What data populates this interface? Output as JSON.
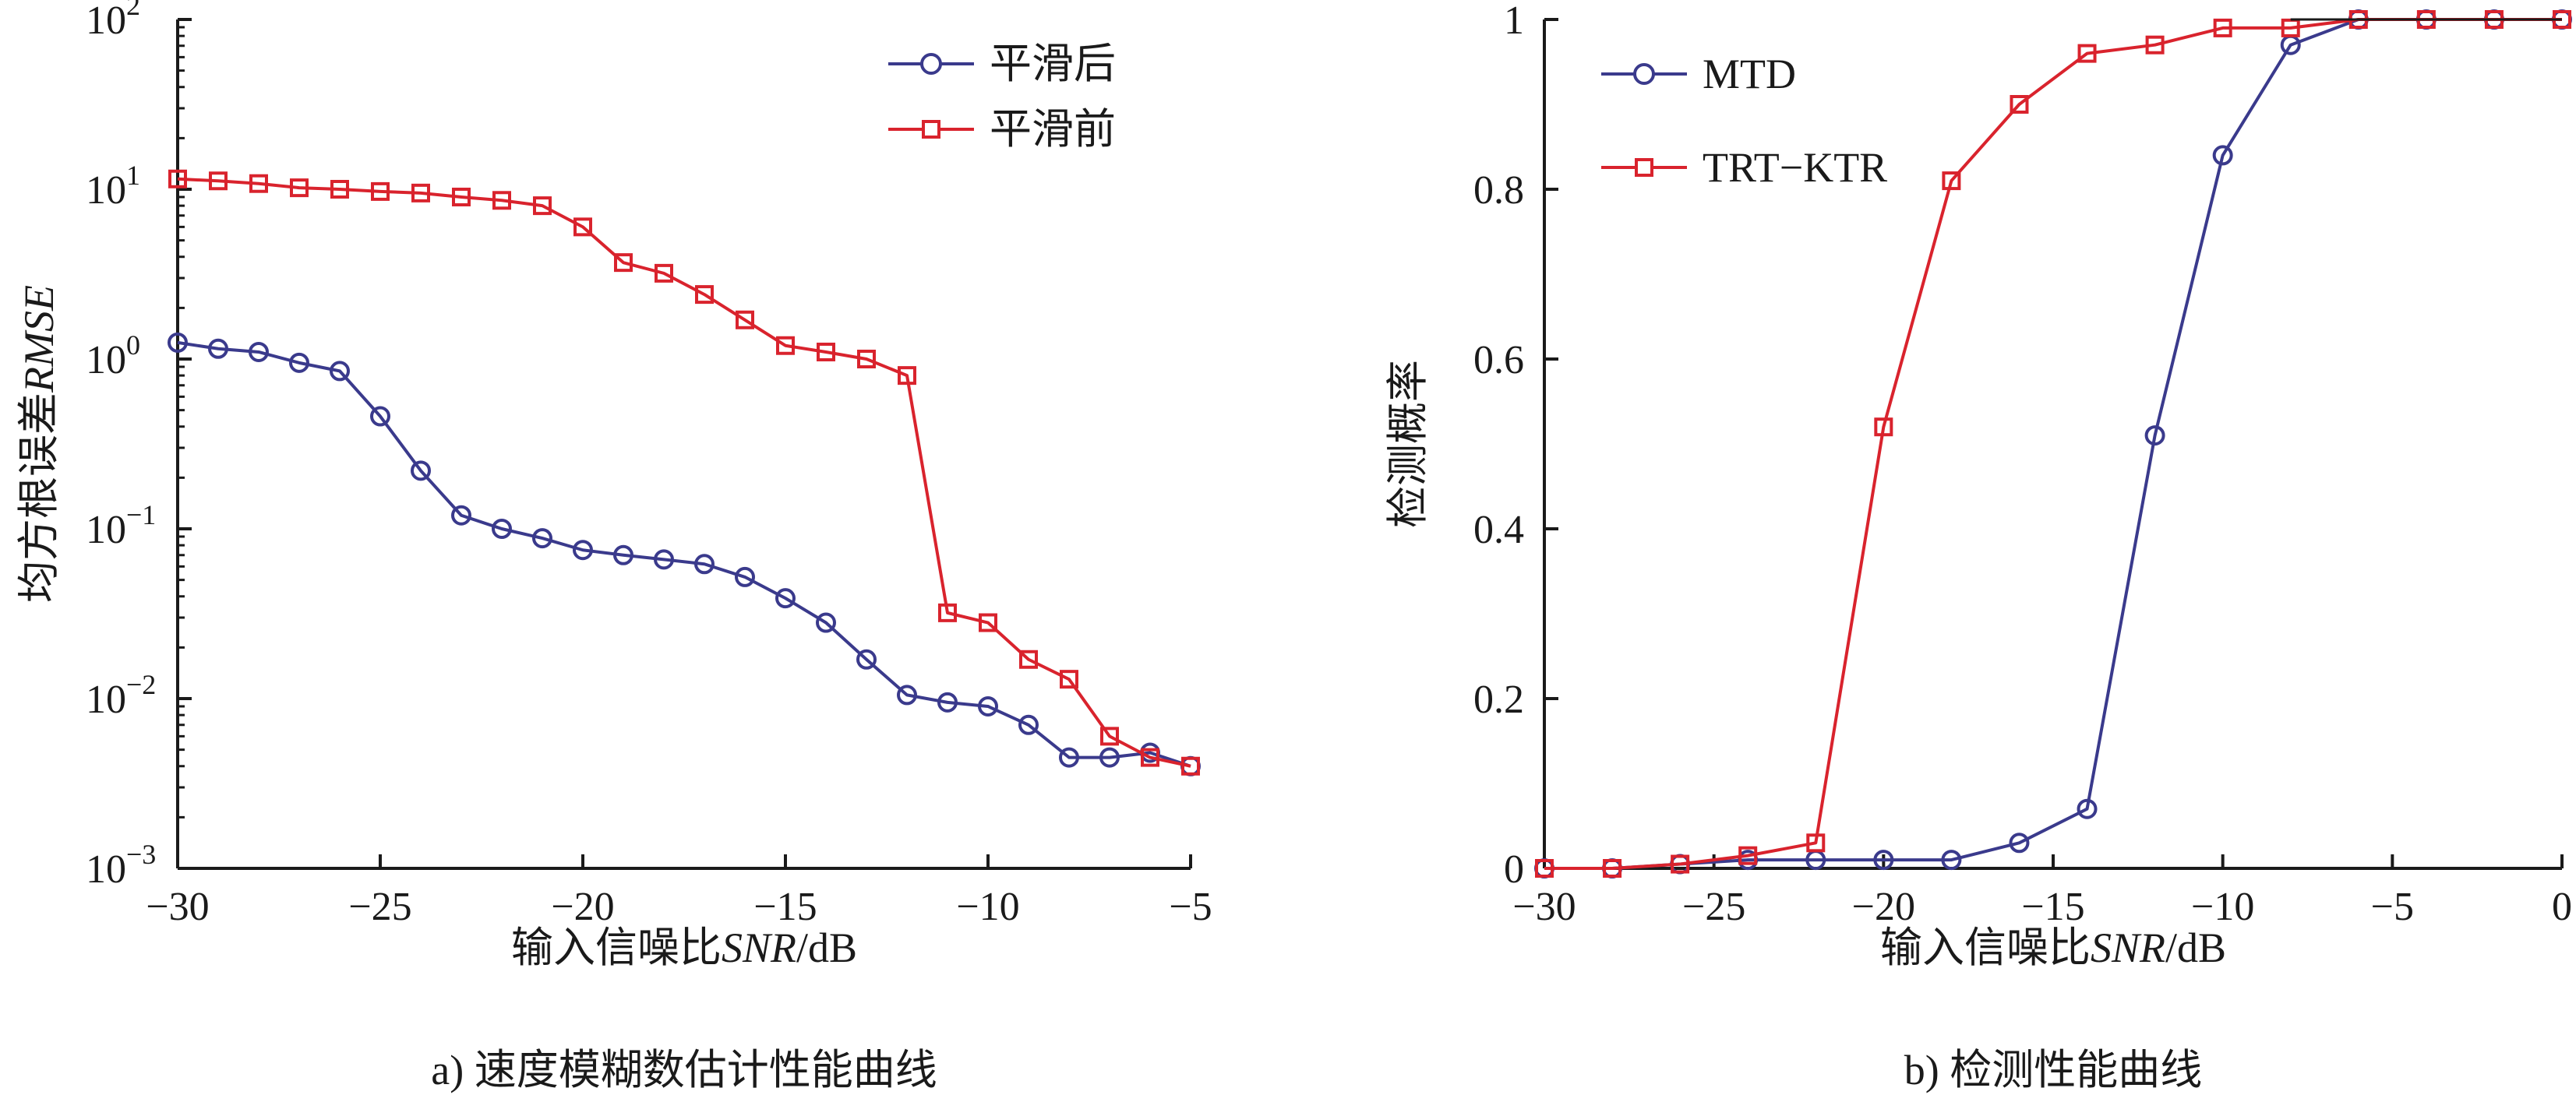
{
  "chart_data": [
    {
      "type": "line",
      "caption": "a) 速度模糊数估计性能曲线",
      "xlabel_prefix": "输入信噪比",
      "xlabel_var": "SNR",
      "xlabel_unit": "/dB",
      "ylabel_prefix": "均方根误差",
      "ylabel_var": "RMSE",
      "yscale": "log",
      "xlim": [
        -30,
        -5
      ],
      "ylim": [
        0.001,
        100
      ],
      "xticks": [
        {
          "value": -30,
          "label": "−30"
        },
        {
          "value": -25,
          "label": "−25"
        },
        {
          "value": -20,
          "label": "−20"
        },
        {
          "value": -15,
          "label": "−15"
        },
        {
          "value": -10,
          "label": "−10"
        },
        {
          "value": -5,
          "label": "−5"
        }
      ],
      "yticks": [
        {
          "value": 100,
          "base": "10",
          "exp": "2"
        },
        {
          "value": 10,
          "base": "10",
          "exp": "1"
        },
        {
          "value": 1,
          "base": "10",
          "exp": "0"
        },
        {
          "value": 0.1,
          "base": "10",
          "exp": "−1"
        },
        {
          "value": 0.01,
          "base": "10",
          "exp": "−2"
        },
        {
          "value": 0.001,
          "base": "10",
          "exp": "−3"
        }
      ],
      "legend_position": "top-right",
      "series": [
        {
          "name": "平滑后",
          "color": "#3a3a8c",
          "marker": "circle",
          "x": [
            -30,
            -29,
            -28,
            -27,
            -26,
            -25,
            -24,
            -23,
            -22,
            -21,
            -20,
            -19,
            -18,
            -17,
            -16,
            -15,
            -14,
            -13,
            -12,
            -11,
            -10,
            -9,
            -8,
            -7,
            -6,
            -5
          ],
          "y": [
            1.25,
            1.15,
            1.1,
            0.95,
            0.85,
            0.46,
            0.22,
            0.12,
            0.1,
            0.088,
            0.075,
            0.07,
            0.066,
            0.062,
            0.052,
            0.039,
            0.028,
            0.017,
            0.0105,
            0.0095,
            0.009,
            0.007,
            0.0045,
            0.0045,
            0.0048,
            0.004
          ]
        },
        {
          "name": "平滑前",
          "color": "#d9232d",
          "marker": "square",
          "x": [
            -30,
            -29,
            -28,
            -27,
            -26,
            -25,
            -24,
            -23,
            -22,
            -21,
            -20,
            -19,
            -18,
            -17,
            -16,
            -15,
            -14,
            -13,
            -12,
            -11,
            -10,
            -9,
            -8,
            -7,
            -6,
            -5
          ],
          "y": [
            11.5,
            11.2,
            10.8,
            10.2,
            10.0,
            9.7,
            9.5,
            9.0,
            8.6,
            8.0,
            6.0,
            3.7,
            3.2,
            2.4,
            1.7,
            1.2,
            1.1,
            1.0,
            0.8,
            0.032,
            0.028,
            0.017,
            0.013,
            0.006,
            0.0045,
            0.004
          ]
        }
      ]
    },
    {
      "type": "line",
      "caption": "b) 检测性能曲线",
      "xlabel_prefix": "输入信噪比",
      "xlabel_var": "SNR",
      "xlabel_unit": "/dB",
      "ylabel": "检测概率",
      "xlim": [
        -30,
        0
      ],
      "ylim": [
        0,
        1
      ],
      "xticks": [
        {
          "value": -30,
          "label": "−30"
        },
        {
          "value": -25,
          "label": "−25"
        },
        {
          "value": -20,
          "label": "−20"
        },
        {
          "value": -15,
          "label": "−15"
        },
        {
          "value": -10,
          "label": "−10"
        },
        {
          "value": -5,
          "label": "−5"
        },
        {
          "value": 0,
          "label": "0"
        }
      ],
      "yticks": [
        {
          "value": 0,
          "label": "0"
        },
        {
          "value": 0.2,
          "label": "0.2"
        },
        {
          "value": 0.4,
          "label": "0.4"
        },
        {
          "value": 0.6,
          "label": "0.6"
        },
        {
          "value": 0.8,
          "label": "0.8"
        },
        {
          "value": 1,
          "label": "1"
        }
      ],
      "legend_position": "top-left",
      "series": [
        {
          "name": "MTD",
          "color": "#3a3a8c",
          "marker": "circle",
          "x": [
            -30,
            -28,
            -26,
            -24,
            -22,
            -20,
            -18,
            -16,
            -14,
            -12,
            -10,
            -8,
            -6,
            -4,
            -2,
            0
          ],
          "y": [
            0,
            0,
            0.005,
            0.01,
            0.01,
            0.01,
            0.01,
            0.03,
            0.07,
            0.51,
            0.84,
            0.97,
            1.0,
            1.0,
            1.0,
            1.0
          ]
        },
        {
          "name": "TRT−KTR",
          "color": "#d9232d",
          "marker": "square",
          "x": [
            -30,
            -28,
            -26,
            -24,
            -22,
            -20,
            -18,
            -16,
            -14,
            -12,
            -10,
            -8,
            -6,
            -4,
            -2,
            0
          ],
          "y": [
            0,
            0,
            0.005,
            0.015,
            0.03,
            0.52,
            0.81,
            0.9,
            0.96,
            0.97,
            0.99,
            0.99,
            1.0,
            1.0,
            1.0,
            1.0
          ]
        }
      ]
    }
  ]
}
